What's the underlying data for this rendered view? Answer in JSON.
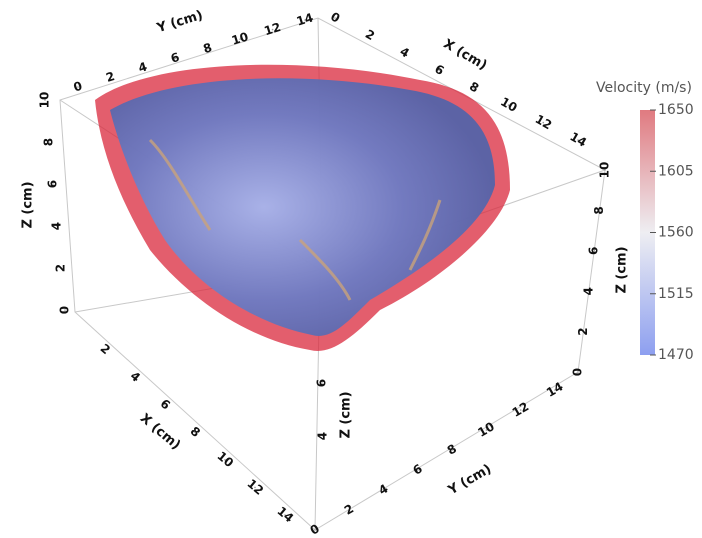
{
  "colorbar": {
    "title": "Velocity (m/s)",
    "range": [
      1470,
      1650
    ],
    "ticks": [
      1470,
      1515,
      1560,
      1605,
      1650
    ]
  },
  "axes": [
    {
      "label": "Y (cm)",
      "range": [
        0,
        14
      ],
      "ticks": [
        0,
        2,
        4,
        6,
        8,
        10,
        12,
        14
      ]
    },
    {
      "label": "X (cm)",
      "range": [
        0,
        14
      ],
      "ticks": [
        0,
        2,
        4,
        6,
        8,
        10,
        12,
        14
      ]
    },
    {
      "label": "Z (cm)",
      "range": [
        0,
        10
      ],
      "ticks": [
        0,
        2,
        4,
        6,
        8,
        10
      ]
    },
    {
      "label": "Z (cm)",
      "range": [
        0,
        10
      ],
      "ticks": [
        0,
        2,
        4,
        6,
        8,
        10
      ]
    },
    {
      "label": "X (cm)",
      "range": [
        0,
        14
      ],
      "ticks": [
        2,
        4,
        6,
        8,
        10,
        12,
        14
      ]
    },
    {
      "label": "Y (cm)",
      "range": [
        0,
        14
      ],
      "ticks": [
        0,
        2,
        4,
        6,
        8,
        10,
        12,
        14
      ]
    },
    {
      "label": "Z (cm)",
      "range": [
        0,
        10
      ],
      "ticks": [
        4,
        6
      ]
    }
  ]
}
